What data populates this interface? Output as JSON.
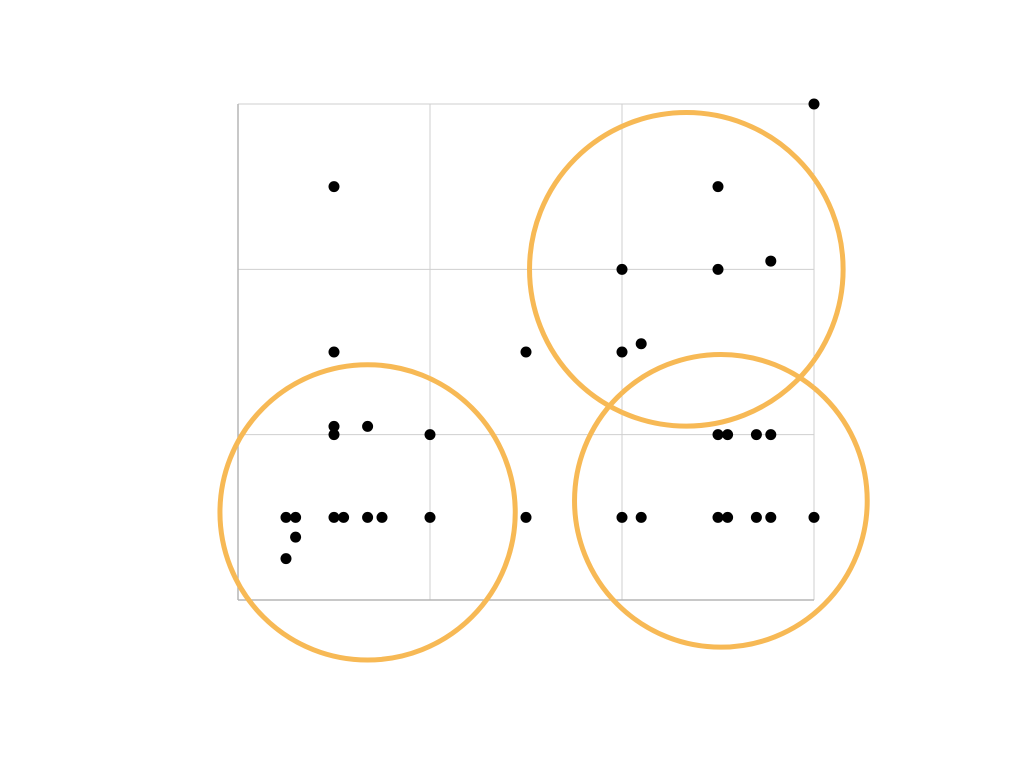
{
  "chart_data": {
    "type": "scatter",
    "title": "",
    "xlabel": "",
    "ylabel": "",
    "xlim": [
      0,
      6
    ],
    "ylim": [
      0,
      3
    ],
    "grid": true,
    "x_gridlines": [
      0,
      2,
      4,
      6
    ],
    "y_gridlines": [
      0,
      1,
      2,
      3
    ],
    "series": [
      {
        "points": [
          [
            6.0,
            3.0
          ],
          [
            1.0,
            2.5
          ],
          [
            5.0,
            2.5
          ],
          [
            4.0,
            2.0
          ],
          [
            5.0,
            2.0
          ],
          [
            5.55,
            2.05
          ],
          [
            1.0,
            1.5
          ],
          [
            3.0,
            1.5
          ],
          [
            4.0,
            1.5
          ],
          [
            4.2,
            1.55
          ],
          [
            1.0,
            1.05
          ],
          [
            1.35,
            1.05
          ],
          [
            1.0,
            1.0
          ],
          [
            2.0,
            1.0
          ],
          [
            5.0,
            1.0
          ],
          [
            5.1,
            1.0
          ],
          [
            5.4,
            1.0
          ],
          [
            5.55,
            1.0
          ],
          [
            0.5,
            0.5
          ],
          [
            0.6,
            0.5
          ],
          [
            1.0,
            0.5
          ],
          [
            1.1,
            0.5
          ],
          [
            1.35,
            0.5
          ],
          [
            1.5,
            0.5
          ],
          [
            2.0,
            0.5
          ],
          [
            3.0,
            0.5
          ],
          [
            4.0,
            0.5
          ],
          [
            4.2,
            0.5
          ],
          [
            5.0,
            0.5
          ],
          [
            5.1,
            0.5
          ],
          [
            5.4,
            0.5
          ],
          [
            5.55,
            0.5
          ],
          [
            6.0,
            0.5
          ],
          [
            0.6,
            0.38
          ],
          [
            0.5,
            0.25
          ]
        ]
      }
    ],
    "annotations": [
      {
        "shape": "circle",
        "center": [
          1.35,
          0.53
        ],
        "radius": 1.13
      },
      {
        "shape": "circle",
        "center": [
          4.67,
          2.0
        ],
        "radius": 1.2
      },
      {
        "shape": "circle",
        "center": [
          5.03,
          0.6
        ],
        "radius": 1.12
      }
    ],
    "colors": {
      "point": "#000000",
      "annotation": "#f7b955",
      "grid": "#cfcfcf",
      "axis": "#b5b5b5"
    }
  }
}
